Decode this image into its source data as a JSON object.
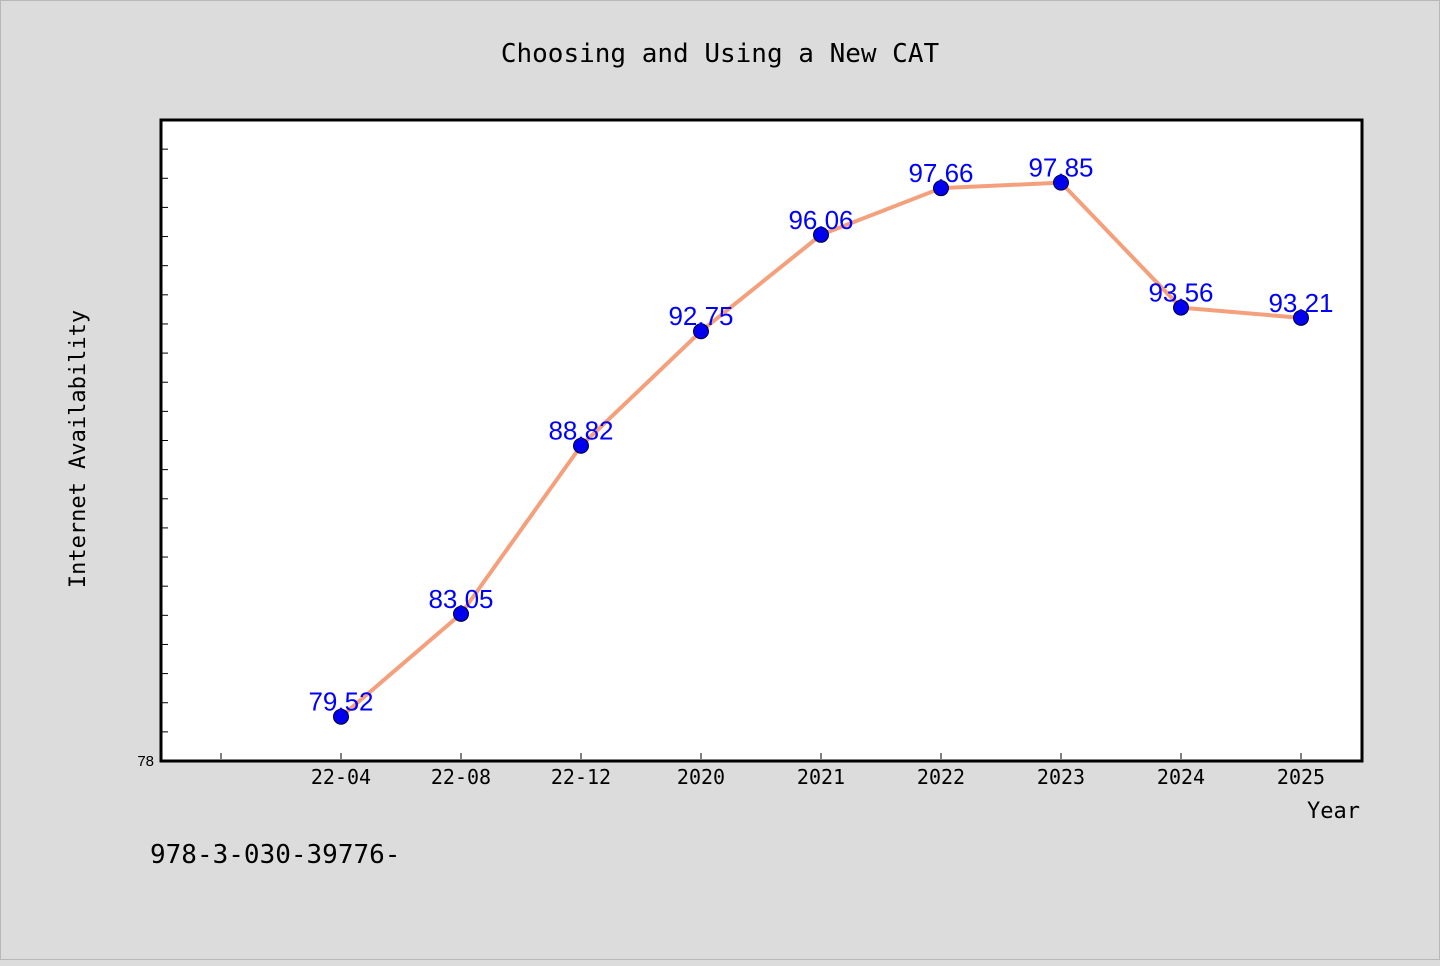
{
  "chart_data": {
    "type": "line",
    "title": "Choosing and Using a New CAT",
    "xlabel": "Year",
    "ylabel": "Internet Availability",
    "categories": [
      "22-04",
      "22-08",
      "22-12",
      "2020",
      "2021",
      "2022",
      "2023",
      "2024",
      "2025"
    ],
    "series": [
      {
        "values": [
          79.52,
          83.05,
          88.82,
          92.75,
          96.06,
          97.66,
          97.85,
          93.56,
          93.21
        ],
        "labels": [
          "79.52",
          "83.05",
          "88.82",
          "92.75",
          "96.06",
          "97.66",
          "97.85",
          "93.56",
          "93.21"
        ],
        "line_color": "#f4a07c",
        "marker_color": "#0000ee"
      }
    ],
    "ylim": [
      78,
      100
    ],
    "y_tick_labels": [
      "78"
    ],
    "grid": false,
    "legend": "none"
  },
  "footnote": "978-3-030-39776-",
  "colors": {
    "background": "#dcdcdc",
    "plot_area": "#ffffff",
    "data_label": "#0000ff"
  }
}
